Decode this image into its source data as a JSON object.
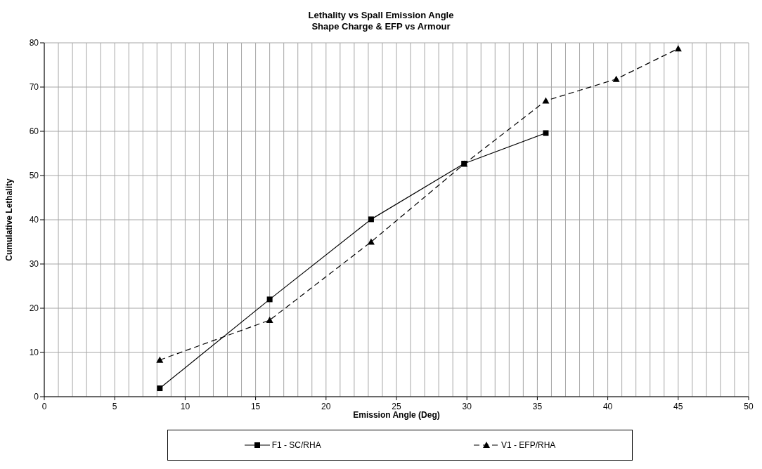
{
  "chart_data": {
    "type": "line",
    "title": "Lethality vs Spall Emission Angle",
    "subtitle": "Shape Charge & EFP vs Armour",
    "xlabel": "Emission Angle (Deg)",
    "ylabel": "Cumulative Lethality",
    "xlim": [
      0,
      50
    ],
    "xticks": [
      0,
      {
        "value": 1,
        "label": null
      },
      {
        "value": 2,
        "label": null
      },
      {
        "value": 3,
        "label": null
      },
      {
        "value": 4,
        "label": null
      },
      5,
      {
        "value": 6,
        "label": null
      },
      {
        "value": 7,
        "label": null
      },
      {
        "value": 8,
        "label": null
      },
      {
        "value": 9,
        "label": null
      },
      10,
      {
        "value": 11,
        "label": null
      },
      {
        "value": 12,
        "label": null
      },
      {
        "value": 13,
        "label": null
      },
      {
        "value": 14,
        "label": null
      },
      15,
      {
        "value": 16,
        "label": null
      },
      {
        "value": 17,
        "label": null
      },
      {
        "value": 18,
        "label": null
      },
      {
        "value": 19,
        "label": null
      },
      20,
      {
        "value": 21,
        "label": null
      },
      {
        "value": 22,
        "label": null
      },
      {
        "value": 23,
        "label": null
      },
      {
        "value": 24,
        "label": null
      },
      25,
      {
        "value": 26,
        "label": null
      },
      {
        "value": 27,
        "label": null
      },
      {
        "value": 28,
        "label": null
      },
      {
        "value": 29,
        "label": null
      },
      30,
      {
        "value": 31,
        "label": null
      },
      {
        "value": 32,
        "label": null
      },
      {
        "value": 33,
        "label": null
      },
      {
        "value": 34,
        "label": null
      },
      35,
      {
        "value": 36,
        "label": null
      },
      {
        "value": 37,
        "label": null
      },
      {
        "value": 38,
        "label": null
      },
      {
        "value": 39,
        "label": null
      },
      40,
      {
        "value": 41,
        "label": null
      },
      {
        "value": 42,
        "label": null
      },
      {
        "value": 43,
        "label": null
      },
      {
        "value": 44,
        "label": null
      },
      45,
      {
        "value": 46,
        "label": null
      },
      {
        "value": 47,
        "label": null
      },
      {
        "value": 48,
        "label": null
      },
      {
        "value": 49,
        "label": null
      },
      50
    ],
    "ylim": [
      0,
      80
    ],
    "yticks": [
      0,
      10,
      20,
      30,
      40,
      50,
      60,
      70,
      80
    ],
    "grid": true,
    "legend": "bottom",
    "series": [
      {
        "name": "F1 - SC/RHA",
        "color": "#000000",
        "marker": "square",
        "line_style": "solid",
        "x": [
          8.2,
          16,
          23.2,
          29.8,
          35.6
        ],
        "values": [
          1.9,
          22,
          40.1,
          52.7,
          59.6
        ]
      },
      {
        "name": "V1 - EFP/RHA",
        "color": "#000000",
        "marker": "triangle",
        "line_style": "dashed",
        "x": [
          8.2,
          16,
          23.2,
          29.8,
          35.6,
          40.6,
          45
        ],
        "values": [
          8.3,
          17.3,
          35,
          52.6,
          66.9,
          71.8,
          78.7
        ]
      }
    ]
  }
}
